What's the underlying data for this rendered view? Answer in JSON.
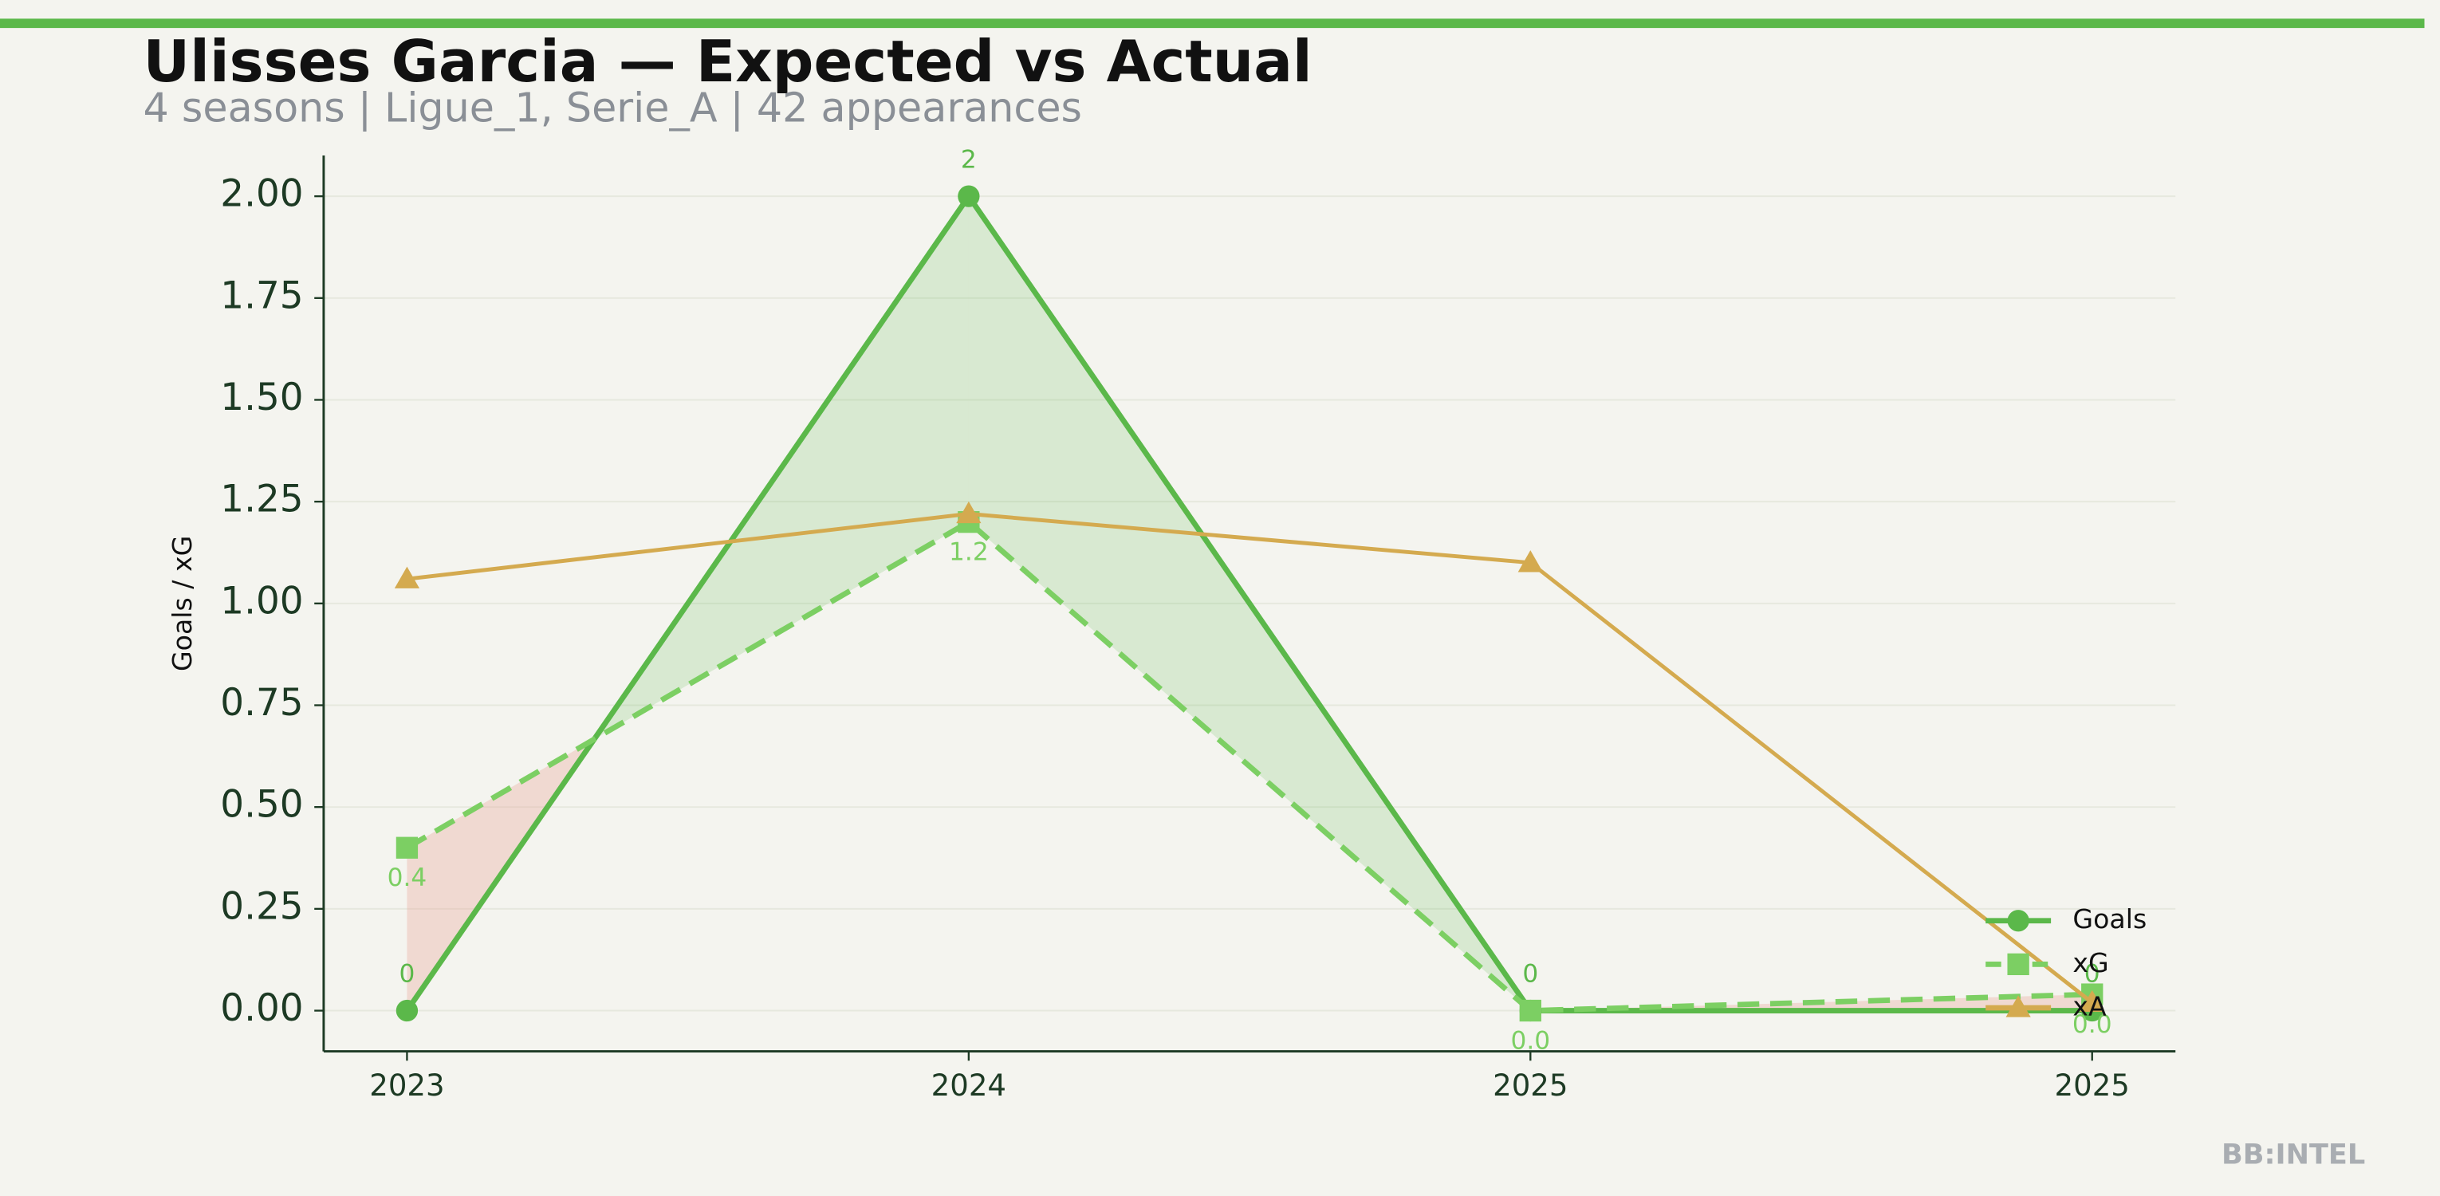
{
  "chart_data": {
    "type": "line",
    "title": "Ulisses Garcia — Expected vs Actual",
    "subtitle": "4 seasons | Ligue_1, Serie_A | 42 appearances",
    "y_label": "Goals / xG",
    "watermark": "BB:INTEL",
    "categories": [
      "2023",
      "2024",
      "2025",
      "2025"
    ],
    "series": [
      {
        "name": "Goals",
        "color": "#5bb84a",
        "marker": "circle",
        "dashed": false,
        "labels_position": "above",
        "values": [
          0,
          2,
          0,
          0
        ]
      },
      {
        "name": "xG",
        "color": "#7ccf63",
        "marker": "square",
        "dashed": true,
        "labels_position": "below",
        "values": [
          0.4,
          1.2,
          0.0,
          0.04
        ],
        "value_labels": [
          "0.4",
          "1.2",
          "0.0",
          "0.0"
        ]
      },
      {
        "name": "xA",
        "color": "#d4aa4f",
        "marker": "triangle",
        "dashed": false,
        "values": [
          1.06,
          1.22,
          1.1,
          0.02
        ]
      }
    ],
    "ylim": [
      -0.1,
      2.1
    ],
    "yticks": [
      {
        "value": 0,
        "label": "0.00"
      },
      {
        "value": 0.25,
        "label": "0.25"
      },
      {
        "value": 0.5,
        "label": "0.50"
      },
      {
        "value": 0.75,
        "label": "0.75"
      },
      {
        "value": 1,
        "label": "1.00"
      },
      {
        "value": 1.25,
        "label": "1.25"
      },
      {
        "value": 1.5,
        "label": "1.50"
      },
      {
        "value": 1.75,
        "label": "1.75"
      },
      {
        "value": 2,
        "label": "2.00"
      }
    ],
    "grid": true,
    "legend": "lower right",
    "fill_over_color": "#5bb84a",
    "fill_under_color": "#e8a59a"
  }
}
